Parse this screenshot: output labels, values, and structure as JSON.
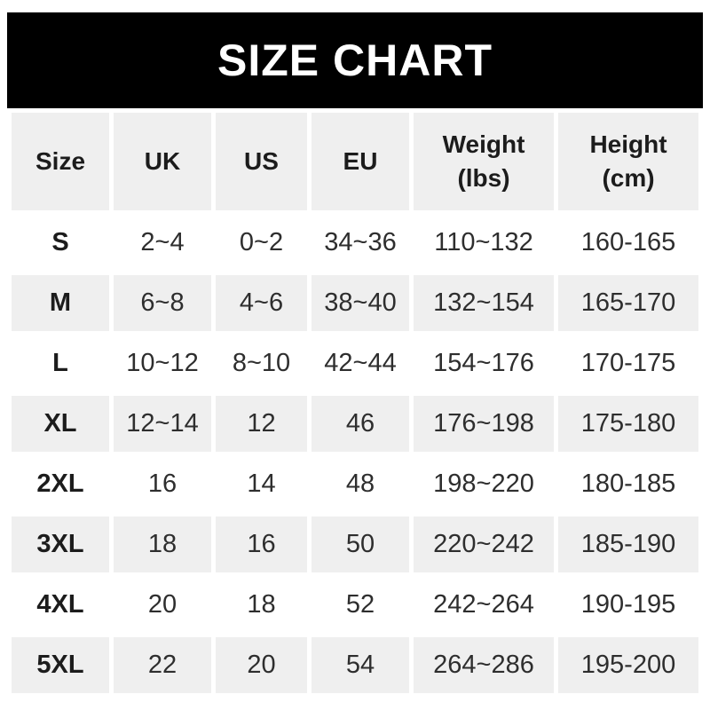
{
  "banner": {
    "title": "SIZE CHART"
  },
  "table": {
    "columns": [
      "Size",
      "UK",
      "US",
      "EU",
      "Weight\n(lbs)",
      "Height\n(cm)"
    ],
    "rows": [
      [
        "S",
        "2~4",
        "0~2",
        "34~36",
        "110~132",
        "160-165"
      ],
      [
        "M",
        "6~8",
        "4~6",
        "38~40",
        "132~154",
        "165-170"
      ],
      [
        "L",
        "10~12",
        "8~10",
        "42~44",
        "154~176",
        "170-175"
      ],
      [
        "XL",
        "12~14",
        "12",
        "46",
        "176~198",
        "175-180"
      ],
      [
        "2XL",
        "16",
        "14",
        "48",
        "198~220",
        "180-185"
      ],
      [
        "3XL",
        "18",
        "16",
        "50",
        "220~242",
        "185-190"
      ],
      [
        "4XL",
        "20",
        "18",
        "52",
        "242~264",
        "190-195"
      ],
      [
        "5XL",
        "22",
        "20",
        "54",
        "264~286",
        "195-200"
      ]
    ]
  },
  "colors": {
    "banner_bg": "#000000",
    "banner_text": "#ffffff",
    "header_row_bg": "#efefef",
    "row_alt_bg": "#efefef",
    "row_bg": "#ffffff",
    "text_dark": "#1c1c1c",
    "text_data": "#2e2e2e"
  },
  "chart_data": {
    "type": "table",
    "title": "SIZE CHART",
    "columns": [
      "Size",
      "UK",
      "US",
      "EU",
      "Weight (lbs)",
      "Height (cm)"
    ],
    "rows": [
      [
        "S",
        "2~4",
        "0~2",
        "34~36",
        "110~132",
        "160-165"
      ],
      [
        "M",
        "6~8",
        "4~6",
        "38~40",
        "132~154",
        "165-170"
      ],
      [
        "L",
        "10~12",
        "8~10",
        "42~44",
        "154~176",
        "170-175"
      ],
      [
        "XL",
        "12~14",
        "12",
        "46",
        "176~198",
        "175-180"
      ],
      [
        "2XL",
        "16",
        "14",
        "48",
        "198~220",
        "180-185"
      ],
      [
        "3XL",
        "18",
        "16",
        "50",
        "220~242",
        "185-190"
      ],
      [
        "4XL",
        "20",
        "18",
        "52",
        "242~264",
        "190-195"
      ],
      [
        "5XL",
        "22",
        "20",
        "54",
        "264~286",
        "195-200"
      ]
    ],
    "layout": {
      "header_style": "gray-filled",
      "row_striping": "white/gray alternating starting white",
      "range_separator_weight": "~",
      "range_separator_height": "-"
    }
  }
}
